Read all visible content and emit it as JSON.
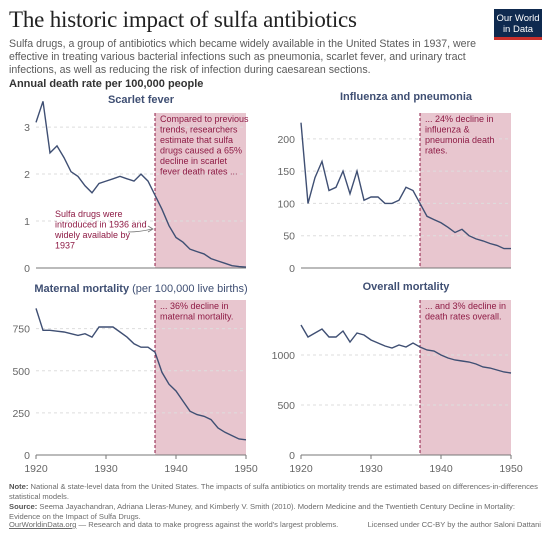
{
  "header": {
    "title": "The historic impact of sulfa antibiotics",
    "subtitle": "Sulfa drugs, a group of antibiotics which became widely available in the United States in 1937, were effective in treating various bacterial infections such as pneumonia, scarlet fever, and urinary tract infections, as well as reducing the risk of infection during caesarean sections.",
    "measure": "Annual death rate per 100,000 people",
    "logo_line1": "Our World",
    "logo_line2": "in Data"
  },
  "colors": {
    "line": "#3f4f73",
    "shade": "#e8c6cf",
    "annotation": "#8e1b45",
    "grid": "#dddddd",
    "axis": "#777777"
  },
  "chart_data": [
    {
      "type": "line",
      "title": "Scarlet fever",
      "x_range": [
        1920,
        1950
      ],
      "ylim": [
        0,
        3.3
      ],
      "yticks": [
        0,
        1,
        2,
        3
      ],
      "shade_from": 1937,
      "annotation": "Compared to previous trends, researchers estimate that sulfa drugs caused a 65% decline in scarlet fever death rates ...",
      "side_note": "Sulfa drugs were introduced in 1936 and widely available by 1937",
      "series": [
        {
          "x": [
            1920,
            1921,
            1922,
            1923,
            1924,
            1925,
            1926,
            1927,
            1928,
            1929,
            1930,
            1931,
            1932,
            1933,
            1934,
            1935,
            1936,
            1937,
            1938,
            1939,
            1940,
            1941,
            1942,
            1943,
            1944,
            1945,
            1946,
            1947,
            1948,
            1949,
            1950
          ],
          "y": [
            3.1,
            3.55,
            2.45,
            2.6,
            2.35,
            2.05,
            1.95,
            1.75,
            1.6,
            1.8,
            1.85,
            1.9,
            1.95,
            1.9,
            1.85,
            2.0,
            1.85,
            1.55,
            1.25,
            0.9,
            0.65,
            0.55,
            0.4,
            0.35,
            0.3,
            0.2,
            0.15,
            0.1,
            0.05,
            0.03,
            0.02
          ]
        }
      ]
    },
    {
      "type": "line",
      "title": "Influenza and pneumonia",
      "x_range": [
        1920,
        1950
      ],
      "ylim": [
        0,
        240
      ],
      "yticks": [
        0,
        50,
        100,
        150,
        200
      ],
      "shade_from": 1937,
      "annotation": "... 24% decline in influenza & pneumonia death rates.",
      "series": [
        {
          "x": [
            1920,
            1921,
            1922,
            1923,
            1924,
            1925,
            1926,
            1927,
            1928,
            1929,
            1930,
            1931,
            1932,
            1933,
            1934,
            1935,
            1936,
            1937,
            1938,
            1939,
            1940,
            1941,
            1942,
            1943,
            1944,
            1945,
            1946,
            1947,
            1948,
            1949,
            1950
          ],
          "y": [
            225,
            100,
            140,
            165,
            120,
            125,
            150,
            115,
            150,
            105,
            110,
            110,
            100,
            100,
            105,
            125,
            120,
            100,
            80,
            75,
            70,
            63,
            55,
            60,
            50,
            45,
            42,
            38,
            35,
            30,
            30
          ]
        }
      ]
    },
    {
      "type": "line",
      "title": "Maternal mortality",
      "title_suffix": "(per 100,000 live births)",
      "x_range": [
        1920,
        1950
      ],
      "ylim": [
        0,
        920
      ],
      "yticks": [
        0,
        250,
        500,
        750
      ],
      "xticks": [
        1920,
        1930,
        1940,
        1950
      ],
      "shade_from": 1937,
      "annotation": "... 36% decline in maternal mortality.",
      "series": [
        {
          "x": [
            1920,
            1921,
            1922,
            1923,
            1924,
            1925,
            1926,
            1927,
            1928,
            1929,
            1930,
            1931,
            1932,
            1933,
            1934,
            1935,
            1936,
            1937,
            1938,
            1939,
            1940,
            1941,
            1942,
            1943,
            1944,
            1945,
            1946,
            1947,
            1948,
            1949,
            1950
          ],
          "y": [
            870,
            740,
            740,
            735,
            730,
            720,
            710,
            720,
            700,
            760,
            760,
            760,
            730,
            700,
            660,
            640,
            640,
            610,
            490,
            420,
            380,
            320,
            260,
            240,
            230,
            210,
            160,
            135,
            115,
            95,
            90
          ]
        }
      ]
    },
    {
      "type": "line",
      "title": "Overall mortality",
      "x_range": [
        1920,
        1950
      ],
      "ylim": [
        0,
        1550
      ],
      "yticks": [
        0,
        500,
        1000
      ],
      "xticks": [
        1920,
        1930,
        1940,
        1950
      ],
      "shade_from": 1937,
      "annotation": "... and 3% decline in death rates overall.",
      "series": [
        {
          "x": [
            1920,
            1921,
            1922,
            1923,
            1924,
            1925,
            1926,
            1927,
            1928,
            1929,
            1930,
            1931,
            1932,
            1933,
            1934,
            1935,
            1936,
            1937,
            1938,
            1939,
            1940,
            1941,
            1942,
            1943,
            1944,
            1945,
            1946,
            1947,
            1948,
            1949,
            1950
          ],
          "y": [
            1300,
            1180,
            1220,
            1260,
            1180,
            1180,
            1240,
            1130,
            1220,
            1200,
            1150,
            1120,
            1090,
            1070,
            1100,
            1080,
            1120,
            1080,
            1050,
            1040,
            1000,
            970,
            950,
            940,
            930,
            910,
            880,
            870,
            850,
            830,
            820
          ]
        }
      ]
    }
  ],
  "footer": {
    "note_label": "Note:",
    "note": "National & state-level data from the United States. The impacts of sulfa antibiotics on mortality trends are estimated based on differences-in-differences statistical models.",
    "source_label": "Source:",
    "source": "Seema Jayachandran, Adriana Lleras-Muney, and Kimberly V. Smith (2010). Modern Medicine and the Twentieth Century Decline in Mortality: Evidence on the Impact of Sulfa Drugs.",
    "site": "OurWorldinData.org",
    "tagline": "— Research and data to make progress against the world's largest problems.",
    "license": "Licensed under CC-BY by the author Saloni Dattani"
  }
}
